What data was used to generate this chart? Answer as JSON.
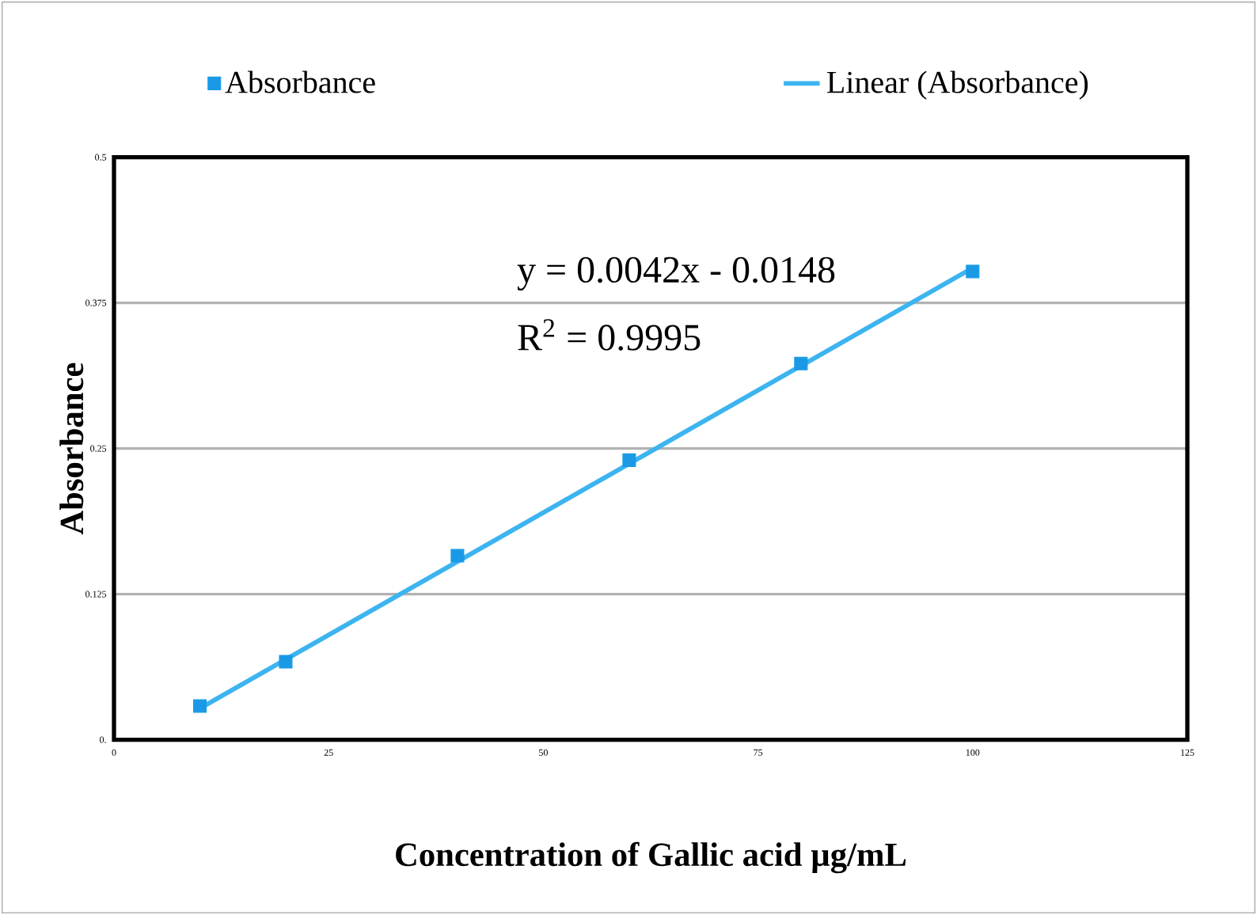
{
  "chart_data": {
    "type": "scatter",
    "xlabel": "Concentration of Gallic acid µg/mL",
    "ylabel": "Absorbance",
    "series": [
      {
        "name": "Absorbance",
        "color": "#1a9ae6",
        "marker": "square",
        "x": [
          10,
          20,
          40,
          60,
          80,
          100
        ],
        "values": [
          0.029,
          0.067,
          0.158,
          0.24,
          0.323,
          0.402
        ]
      },
      {
        "name": "Linear (Absorbance)",
        "type": "line",
        "marker": "none",
        "color": "#3cb4f0",
        "x": [
          10,
          100
        ],
        "values": [
          0.027,
          0.405
        ]
      }
    ],
    "annotations": [
      "y = 0.0042x - 0.0148",
      "R$^{2}$ = 0.9995"
    ],
    "xlim": [
      0,
      125
    ],
    "xticks": [
      0,
      25,
      50,
      75,
      100,
      125
    ],
    "ylim": [
      0,
      0.5
    ],
    "yticks": [
      {
        "value": 0,
        "label": "0."
      },
      0.125,
      0.25,
      0.375,
      0.5
    ],
    "grid": "y",
    "legend": "top"
  }
}
